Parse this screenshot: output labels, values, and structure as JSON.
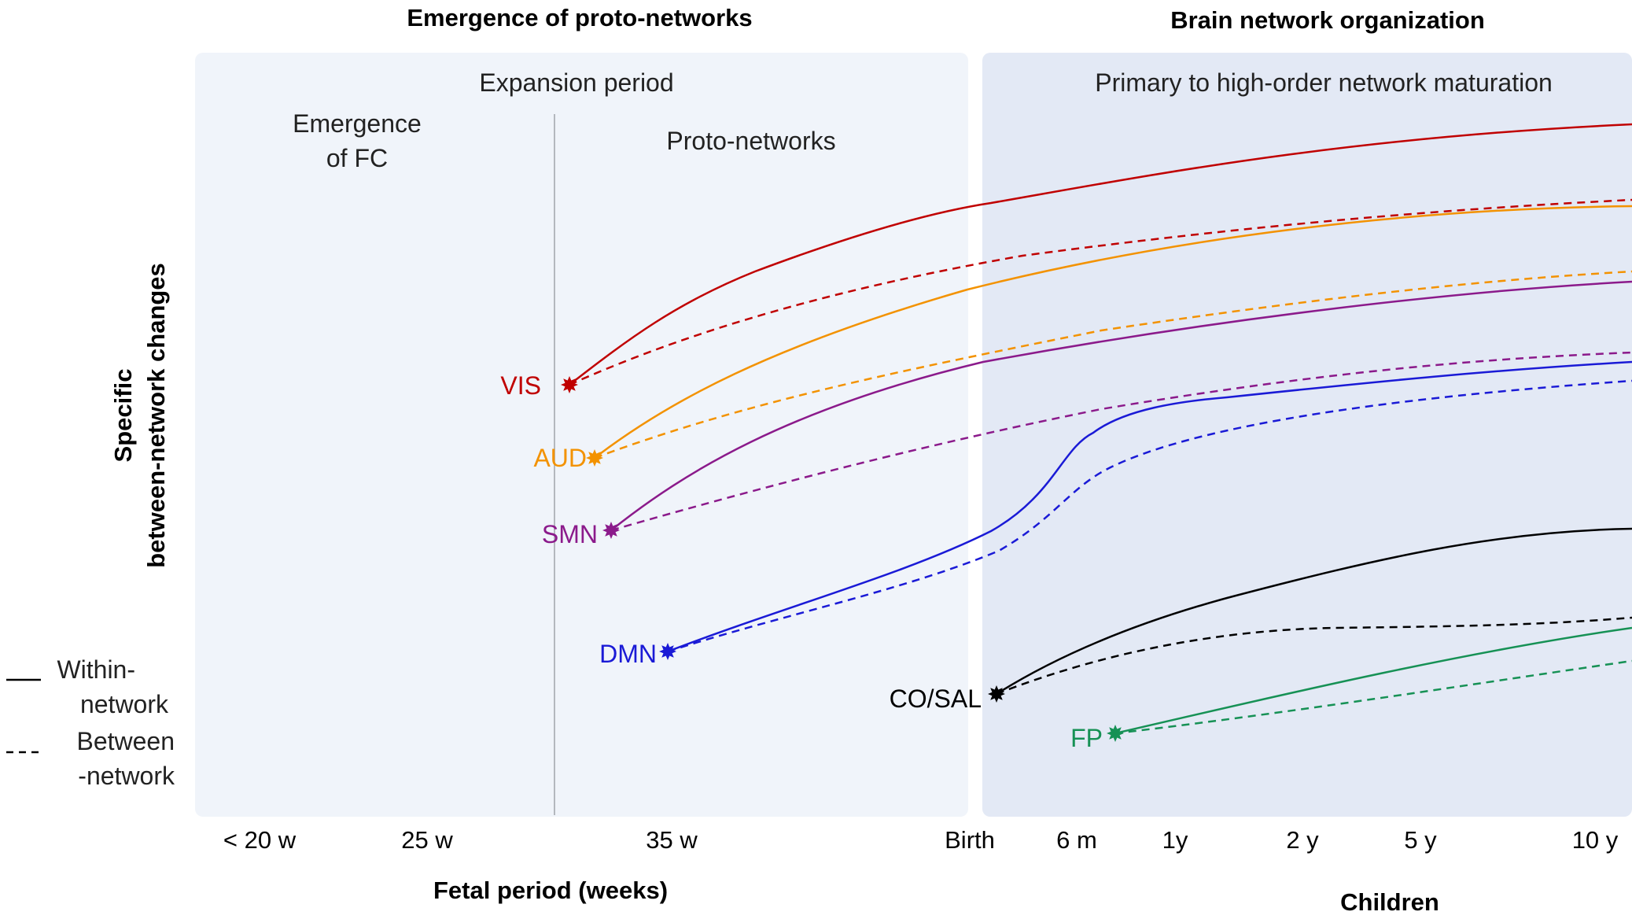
{
  "headings": {
    "left": "Emergence of proto-networks",
    "right": "Brain network organization"
  },
  "panels": {
    "left": {
      "title": "Expansion period",
      "sub_left_line1": "Emergence",
      "sub_left_line2": "of FC",
      "sub_right": "Proto-networks"
    },
    "right": {
      "title": "Primary to high-order network maturation"
    }
  },
  "y_axis": {
    "line1": "Specific",
    "line2": "between-network changes"
  },
  "x_axis": {
    "ticks": [
      "< 20 w",
      "25 w",
      "35 w",
      "Birth",
      "6 m",
      "1y",
      "2 y",
      "5 y",
      "10 y"
    ],
    "label_left": "Fetal period (weeks)",
    "label_right": "Children"
  },
  "legend": {
    "within_line1": "Within-",
    "within_line2": "network",
    "between_line1": "Between",
    "between_line2": "-network"
  },
  "networks": [
    {
      "label": "VIS",
      "color": "#c00000"
    },
    {
      "label": "AUD",
      "color": "#f39200"
    },
    {
      "label": "SMN",
      "color": "#8b1a8b"
    },
    {
      "label": "DMN",
      "color": "#1a1ad6"
    },
    {
      "label": "CO/SAL",
      "color": "#000000"
    },
    {
      "label": "FP",
      "color": "#169155"
    }
  ],
  "colors": {
    "left_panel_bg": "#f0f4fa",
    "right_panel_bg": "#e3e9f5",
    "divider": "#a0a4aa"
  }
}
